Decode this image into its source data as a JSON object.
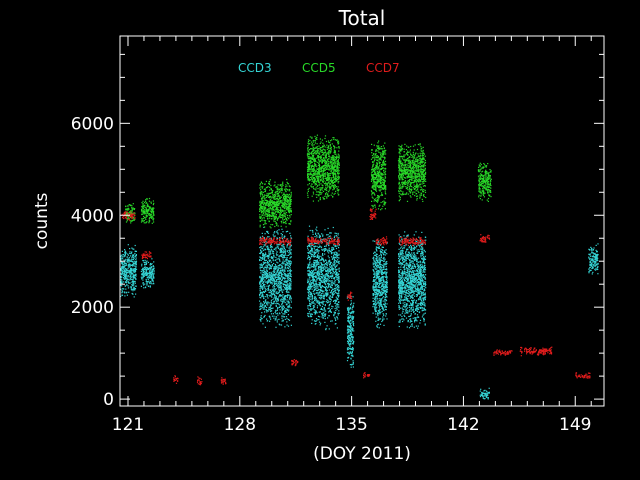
{
  "chart_data": {
    "type": "scatter",
    "title": "Total",
    "xlabel": "(DOY 2011)",
    "ylabel": "counts",
    "xlim": [
      120.5,
      150.8
    ],
    "ylim": [
      -150,
      7900
    ],
    "x_ticks": [
      121,
      128,
      135,
      142,
      149
    ],
    "x_tick_labels": [
      "121",
      "128",
      "135",
      "142",
      "149"
    ],
    "y_ticks": [
      0,
      2000,
      4000,
      6000
    ],
    "y_tick_labels": [
      "0",
      "2000",
      "4000",
      "6000"
    ],
    "grid": false,
    "legend_position": "top-left inside",
    "background": "#000000",
    "axis_color": "#ffffff",
    "series": [
      {
        "name": "CCD3",
        "color": "#35d5d5",
        "clusters": [
          {
            "x": [
              120.5,
              121.5
            ],
            "y": [
              2200,
              3400
            ]
          },
          {
            "x": [
              121.8,
              122.6
            ],
            "y": [
              2400,
              3100
            ]
          },
          {
            "x": [
              129.2,
              131.2
            ],
            "y": [
              1500,
              3800
            ]
          },
          {
            "x": [
              132.2,
              134.2
            ],
            "y": [
              1500,
              3800
            ]
          },
          {
            "x": [
              134.7,
              135.1
            ],
            "y": [
              600,
              2400
            ]
          },
          {
            "x": [
              136.3,
              137.2
            ],
            "y": [
              1500,
              3600
            ]
          },
          {
            "x": [
              137.9,
              139.6
            ],
            "y": [
              1500,
              3700
            ]
          },
          {
            "x": [
              143.0,
              143.6
            ],
            "y": [
              0,
              250
            ]
          },
          {
            "x": [
              149.8,
              150.4
            ],
            "y": [
              2700,
              3400
            ]
          }
        ]
      },
      {
        "name": "CCD5",
        "color": "#28d828",
        "clusters": [
          {
            "x": [
              120.8,
              121.4
            ],
            "y": [
              3800,
              4300
            ]
          },
          {
            "x": [
              121.8,
              122.6
            ],
            "y": [
              3800,
              4400
            ]
          },
          {
            "x": [
              129.2,
              131.2
            ],
            "y": [
              3700,
              4800
            ]
          },
          {
            "x": [
              132.2,
              134.2
            ],
            "y": [
              4300,
              5800
            ]
          },
          {
            "x": [
              136.2,
              137.1
            ],
            "y": [
              4100,
              5700
            ]
          },
          {
            "x": [
              137.9,
              139.6
            ],
            "y": [
              4300,
              5600
            ]
          },
          {
            "x": [
              142.9,
              143.7
            ],
            "y": [
              4300,
              5200
            ]
          }
        ]
      },
      {
        "name": "CCD7",
        "color": "#e01c1c",
        "clusters": [
          {
            "x": [
              120.6,
              121.4
            ],
            "y": [
              3900,
              4100
            ]
          },
          {
            "x": [
              121.8,
              122.4
            ],
            "y": [
              3050,
              3250
            ]
          },
          {
            "x": [
              123.8,
              124.1
            ],
            "y": [
              350,
              550
            ]
          },
          {
            "x": [
              125.3,
              125.6
            ],
            "y": [
              300,
              500
            ]
          },
          {
            "x": [
              126.8,
              127.1
            ],
            "y": [
              300,
              500
            ]
          },
          {
            "x": [
              129.2,
              131.2
            ],
            "y": [
              3350,
              3550
            ]
          },
          {
            "x": [
              131.2,
              131.6
            ],
            "y": [
              700,
              900
            ]
          },
          {
            "x": [
              132.2,
              134.2
            ],
            "y": [
              3350,
              3550
            ]
          },
          {
            "x": [
              134.7,
              135.0
            ],
            "y": [
              2150,
              2350
            ]
          },
          {
            "x": [
              135.7,
              136.1
            ],
            "y": [
              450,
              600
            ]
          },
          {
            "x": [
              136.1,
              136.5
            ],
            "y": [
              3900,
              4200
            ]
          },
          {
            "x": [
              136.5,
              137.2
            ],
            "y": [
              3350,
              3550
            ]
          },
          {
            "x": [
              137.9,
              139.6
            ],
            "y": [
              3350,
              3550
            ]
          },
          {
            "x": [
              143.0,
              143.6
            ],
            "y": [
              3400,
              3600
            ]
          },
          {
            "x": [
              143.8,
              145.0
            ],
            "y": [
              950,
              1100
            ]
          },
          {
            "x": [
              145.5,
              147.5
            ],
            "y": [
              950,
              1150
            ]
          },
          {
            "x": [
              149.0,
              149.9
            ],
            "y": [
              450,
              600
            ]
          }
        ]
      }
    ]
  }
}
